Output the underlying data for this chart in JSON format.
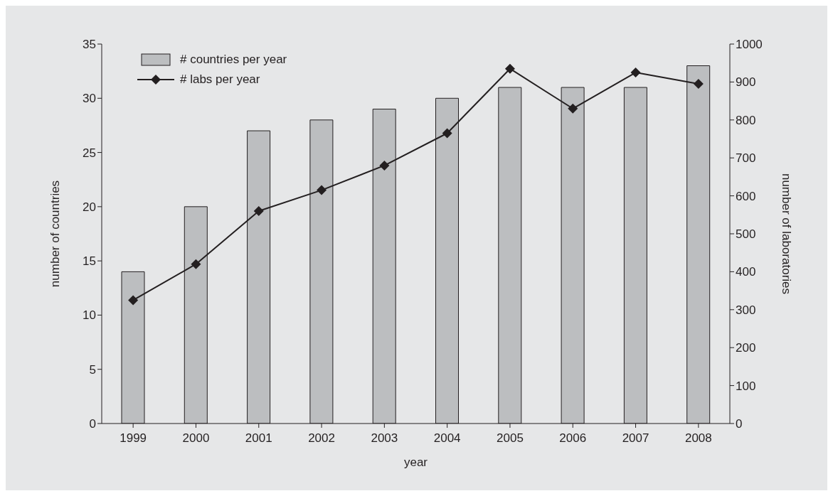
{
  "chart_data": {
    "type": "bar",
    "categories": [
      "1999",
      "2000",
      "2001",
      "2002",
      "2003",
      "2004",
      "2005",
      "2006",
      "2007",
      "2008"
    ],
    "xlabel": "year",
    "ylabel": "number of countries",
    "y2label": "number of laboratories",
    "series": [
      {
        "name": "# countries per year",
        "color": "#bcbec0",
        "values": [
          14,
          20,
          27,
          28,
          29,
          30,
          31,
          31,
          31,
          33
        ]
      },
      {
        "name": "# labs per year",
        "type": "line",
        "axis": "y2",
        "color": "#231f20",
        "marker": "diamond",
        "line_style": "solid",
        "values": [
          325,
          420,
          560,
          615,
          680,
          765,
          935,
          830,
          925,
          895
        ]
      }
    ],
    "ylim": [
      0,
      35
    ],
    "yticks": [
      0,
      5,
      10,
      15,
      20,
      25,
      30,
      35
    ],
    "y2lim": [
      0,
      1000
    ],
    "y2ticks": [
      0,
      100,
      200,
      300,
      400,
      500,
      600,
      700,
      800,
      900,
      1000
    ],
    "legend": "top left"
  }
}
